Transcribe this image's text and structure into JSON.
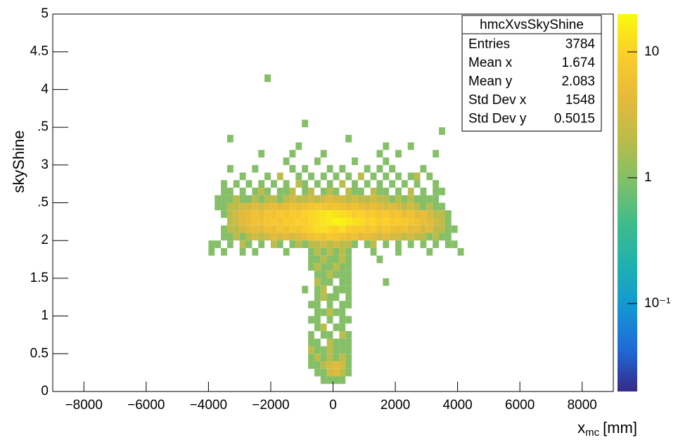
{
  "chart_data": {
    "type": "heatmap2d",
    "y_label": "skyShine",
    "x_label": {
      "text": "x",
      "sub": "mc",
      "unit": "[mm]"
    },
    "xlim": [
      -9000,
      9000
    ],
    "ylim": [
      0,
      5
    ],
    "zlim": [
      0.02,
      20
    ],
    "z_log": true,
    "xbin_width": 200,
    "ybin_width": 0.1,
    "xticks": [
      {
        "value": -8000,
        "label": "−8000"
      },
      {
        "value": -6000,
        "label": "−6000"
      },
      {
        "value": -4000,
        "label": "−4000"
      },
      {
        "value": -2000,
        "label": "−2000"
      },
      0,
      2000,
      4000,
      6000,
      8000
    ],
    "yticks": [
      0,
      0.5,
      1,
      1.5,
      2,
      {
        "value": 2.5,
        "label": ".5"
      },
      3,
      {
        "value": 3.5,
        "label": ".5"
      },
      4,
      4.5,
      5
    ],
    "zticks": [
      {
        "value": 0.1,
        "label": "10⁻¹"
      },
      1,
      10
    ],
    "palette": [
      "#352a87",
      "#1f6ad8",
      "#1496d4",
      "#1fb0b0",
      "#3fbc8a",
      "#7fbf6a",
      "#bbbc4a",
      "#e6ba3a",
      "#fbcc2c",
      "#f9fb0e"
    ],
    "stats": {
      "title": "hmcXvsSkyShine",
      "rows": [
        {
          "label": "Entries",
          "value": 3784
        },
        {
          "label": "Mean x",
          "value": 1.674
        },
        {
          "label": "Mean y",
          "value": 2.083
        },
        {
          "label": "Std Dev x",
          "value": 1548
        },
        {
          "label": "Std Dev y",
          "value": 0.5015
        }
      ]
    },
    "rows": [
      {
        "y": 4.15,
        "x": [
          -2100
        ],
        "z": [
          1
        ]
      },
      {
        "y": 3.55,
        "x": [
          -900
        ],
        "z": [
          1
        ]
      },
      {
        "y": 3.45,
        "x": [
          3500
        ],
        "z": [
          1
        ]
      },
      {
        "y": 3.35,
        "x": [
          -3300,
          500
        ],
        "z": [
          1,
          1
        ]
      },
      {
        "y": 3.25,
        "x": [
          -1100,
          1700,
          2500
        ],
        "z": [
          1,
          1,
          1
        ]
      },
      {
        "y": 3.15,
        "x": [
          -2300,
          -1300,
          -300,
          1500,
          2100,
          3300
        ],
        "z": [
          1,
          1,
          1,
          1,
          1,
          1
        ]
      },
      {
        "y": 3.05,
        "x": [
          -1500,
          -500,
          700,
          1700
        ],
        "z": [
          1,
          1,
          1,
          1
        ]
      },
      {
        "y": 2.95,
        "x": [
          -3300,
          -2500,
          -1300,
          -900,
          -100,
          300,
          1100,
          1500,
          1900,
          2900
        ],
        "z": [
          1,
          1,
          1,
          1,
          1,
          1,
          1,
          1,
          1,
          1
        ]
      },
      {
        "y": 2.85,
        "x": [
          -2900,
          -2100,
          -1700,
          -1100,
          -700,
          -300,
          100,
          500,
          900,
          1300,
          1700,
          2100,
          2500,
          2700,
          3100
        ],
        "z": [
          1,
          1,
          2,
          1,
          1,
          1,
          1,
          1,
          2,
          1,
          1,
          1,
          1,
          2,
          1
        ]
      },
      {
        "y": 2.75,
        "x": [
          -3500,
          -3100,
          -2700,
          -2300,
          -1900,
          -1500,
          -1100,
          -900,
          -500,
          -100,
          300,
          700,
          1100,
          1500,
          1900,
          2300,
          2700,
          3300
        ],
        "z": [
          1,
          1,
          1,
          1,
          1,
          1,
          2,
          1,
          1,
          1,
          2,
          1,
          1,
          1,
          1,
          1,
          1,
          1
        ]
      },
      {
        "y": 2.65,
        "x": [
          -3500,
          -3300,
          -2900,
          -2500,
          -2300,
          -2100,
          -1700,
          -1500,
          -1300,
          -900,
          -700,
          -300,
          -100,
          100,
          500,
          700,
          900,
          1300,
          1500,
          1700,
          2100,
          2500,
          2900,
          3300,
          3500
        ],
        "z": [
          1,
          1,
          1,
          1,
          2,
          1,
          1,
          1,
          2,
          1,
          2,
          1,
          2,
          1,
          2,
          1,
          1,
          2,
          1,
          1,
          1,
          2,
          1,
          1,
          1
        ]
      },
      {
        "y": 2.55,
        "x": [
          -3700,
          -3500,
          -3300,
          -3100,
          -2900,
          -2700,
          -2500,
          -2300,
          -2100,
          -1900,
          -1700,
          -1500,
          -1300,
          -1100,
          -900,
          -700,
          -500,
          -300,
          -100,
          100,
          300,
          500,
          700,
          900,
          1100,
          1300,
          1500,
          1700,
          1900,
          2100,
          2300,
          2500,
          2700,
          2900,
          3100,
          3300
        ],
        "z": [
          1,
          1,
          1,
          2,
          1,
          1,
          2,
          1,
          2,
          2,
          1,
          2,
          3,
          2,
          2,
          3,
          2,
          3,
          4,
          3,
          3,
          2,
          3,
          2,
          2,
          3,
          2,
          2,
          1,
          2,
          1,
          2,
          1,
          1,
          1,
          1
        ]
      },
      {
        "y": 2.45,
        "x": [
          -3700,
          -3500,
          -3300,
          -3100,
          -2900,
          -2700,
          -2500,
          -2300,
          -2100,
          -1900,
          -1700,
          -1500,
          -1300,
          -1100,
          -900,
          -700,
          -500,
          -300,
          -100,
          100,
          300,
          500,
          700,
          900,
          1100,
          1300,
          1500,
          1700,
          1900,
          2100,
          2300,
          2500,
          2700,
          2900,
          3100,
          3300,
          3500
        ],
        "z": [
          1,
          1,
          2,
          2,
          3,
          3,
          4,
          3,
          4,
          5,
          4,
          5,
          6,
          5,
          6,
          7,
          8,
          7,
          6,
          7,
          6,
          5,
          6,
          5,
          4,
          5,
          4,
          3,
          4,
          3,
          2,
          3,
          2,
          1,
          2,
          1,
          1
        ]
      },
      {
        "y": 2.35,
        "x": [
          -3500,
          -3300,
          -3100,
          -2900,
          -2700,
          -2500,
          -2300,
          -2100,
          -1900,
          -1700,
          -1500,
          -1300,
          -1100,
          -900,
          -700,
          -500,
          -300,
          -100,
          100,
          300,
          500,
          700,
          900,
          1100,
          1300,
          1500,
          1700,
          1900,
          2100,
          2300,
          2500,
          2700,
          2900,
          3100,
          3300,
          3500,
          3700
        ],
        "z": [
          1,
          2,
          3,
          4,
          5,
          6,
          5,
          7,
          6,
          8,
          7,
          9,
          8,
          10,
          11,
          12,
          14,
          15,
          13,
          12,
          11,
          9,
          10,
          8,
          9,
          7,
          8,
          6,
          7,
          5,
          6,
          4,
          5,
          3,
          2,
          2,
          1
        ]
      },
      {
        "y": 2.25,
        "x": [
          -3300,
          -3100,
          -2900,
          -2700,
          -2500,
          -2300,
          -2100,
          -1900,
          -1700,
          -1500,
          -1300,
          -1100,
          -900,
          -700,
          -500,
          -300,
          -100,
          100,
          300,
          500,
          700,
          900,
          1100,
          1300,
          1500,
          1700,
          1900,
          2100,
          2300,
          2500,
          2700,
          2900,
          3100,
          3300,
          3500,
          3700
        ],
        "z": [
          2,
          3,
          4,
          5,
          6,
          6,
          7,
          8,
          7,
          9,
          8,
          10,
          9,
          11,
          12,
          14,
          16,
          18,
          17,
          15,
          13,
          12,
          10,
          11,
          9,
          10,
          8,
          9,
          8,
          7,
          6,
          5,
          4,
          3,
          2,
          1
        ]
      },
      {
        "y": 2.15,
        "x": [
          -3500,
          -3300,
          -3100,
          -2900,
          -2700,
          -2500,
          -2300,
          -2100,
          -1900,
          -1700,
          -1500,
          -1300,
          -1100,
          -900,
          -700,
          -500,
          -300,
          -100,
          100,
          300,
          500,
          700,
          900,
          1100,
          1300,
          1500,
          1700,
          1900,
          2100,
          2300,
          2500,
          2700,
          2900,
          3100,
          3300,
          3500,
          3700,
          3900
        ],
        "z": [
          1,
          2,
          2,
          3,
          4,
          5,
          4,
          6,
          5,
          7,
          6,
          8,
          7,
          9,
          10,
          12,
          13,
          11,
          10,
          12,
          9,
          8,
          9,
          7,
          8,
          6,
          7,
          6,
          5,
          6,
          4,
          5,
          3,
          4,
          2,
          2,
          1,
          1
        ]
      },
      {
        "y": 2.05,
        "x": [
          -3500,
          -3300,
          -3100,
          -2900,
          -2700,
          -2500,
          -2300,
          -2100,
          -1900,
          -1700,
          -1500,
          -1300,
          -1100,
          -900,
          -700,
          -500,
          -300,
          -100,
          100,
          300,
          500,
          700,
          900,
          1100,
          1300,
          1500,
          1700,
          1900,
          2100,
          2300,
          2500,
          2700,
          2900,
          3100,
          3300,
          3500,
          3700
        ],
        "z": [
          1,
          1,
          2,
          1,
          2,
          3,
          2,
          3,
          4,
          3,
          4,
          3,
          4,
          5,
          6,
          7,
          6,
          8,
          7,
          6,
          5,
          6,
          4,
          5,
          4,
          3,
          4,
          3,
          3,
          2,
          3,
          2,
          2,
          1,
          2,
          1,
          1
        ]
      },
      {
        "y": 1.95,
        "x": [
          -3900,
          -3700,
          -3300,
          -2900,
          -2700,
          -2300,
          -1900,
          -1700,
          -1300,
          -1100,
          -900,
          -700,
          -500,
          -300,
          -100,
          100,
          300,
          500,
          700,
          1100,
          1300,
          1700,
          2100,
          2500,
          2900,
          3300,
          3700,
          3900
        ],
        "z": [
          1,
          1,
          1,
          2,
          1,
          1,
          2,
          1,
          1,
          2,
          1,
          2,
          2,
          3,
          2,
          3,
          2,
          2,
          1,
          1,
          2,
          1,
          1,
          1,
          1,
          1,
          1,
          1
        ]
      },
      {
        "y": 1.85,
        "x": [
          -3900,
          -3500,
          -2900,
          -2500,
          -1500,
          -700,
          -500,
          -300,
          -100,
          100,
          300,
          500,
          1300,
          2100,
          3100,
          4100
        ],
        "z": [
          1,
          1,
          1,
          1,
          1,
          1,
          2,
          1,
          2,
          1,
          2,
          1,
          1,
          1,
          1,
          1
        ]
      },
      {
        "y": 1.75,
        "x": [
          -700,
          -500,
          -300,
          -100,
          100,
          300,
          500,
          1500
        ],
        "z": [
          1,
          1,
          2,
          1,
          1,
          2,
          1,
          1
        ]
      },
      {
        "y": 1.65,
        "x": [
          -700,
          -500,
          -300,
          -100,
          100,
          300,
          500
        ],
        "z": [
          1,
          2,
          1,
          1,
          2,
          1,
          1
        ]
      },
      {
        "y": 1.55,
        "x": [
          -500,
          -300,
          -100,
          100,
          300,
          500
        ],
        "z": [
          1,
          1,
          2,
          1,
          1,
          1
        ]
      },
      {
        "y": 1.45,
        "x": [
          -500,
          -300,
          -100,
          300,
          500,
          1700
        ],
        "z": [
          2,
          1,
          1,
          1,
          1,
          1
        ]
      },
      {
        "y": 1.35,
        "x": [
          -900,
          -500,
          -300,
          100,
          300,
          500
        ],
        "z": [
          1,
          1,
          2,
          1,
          1,
          1
        ]
      },
      {
        "y": 1.25,
        "x": [
          -500,
          -300,
          -100,
          100,
          500
        ],
        "z": [
          1,
          2,
          1,
          1,
          1
        ]
      },
      {
        "y": 1.15,
        "x": [
          -700,
          -500,
          -100,
          300,
          500
        ],
        "z": [
          1,
          1,
          1,
          1,
          1
        ]
      },
      {
        "y": 1.05,
        "x": [
          -500,
          -300,
          -100,
          100,
          300
        ],
        "z": [
          1,
          1,
          2,
          1,
          1
        ]
      },
      {
        "y": 0.95,
        "x": [
          -700,
          -500,
          -100,
          300,
          500
        ],
        "z": [
          1,
          1,
          1,
          1,
          1
        ]
      },
      {
        "y": 0.85,
        "x": [
          -500,
          -300,
          100,
          300
        ],
        "z": [
          1,
          2,
          1,
          1
        ]
      },
      {
        "y": 0.75,
        "x": [
          -700,
          -300,
          -100,
          300,
          500
        ],
        "z": [
          1,
          1,
          1,
          2,
          1
        ]
      },
      {
        "y": 0.65,
        "x": [
          -700,
          -500,
          -100,
          100,
          300,
          500
        ],
        "z": [
          1,
          1,
          2,
          1,
          1,
          1
        ]
      },
      {
        "y": 0.55,
        "x": [
          -700,
          -500,
          -300,
          -100,
          100,
          300,
          500
        ],
        "z": [
          2,
          1,
          1,
          2,
          1,
          1,
          1
        ]
      },
      {
        "y": 0.45,
        "x": [
          -700,
          -500,
          -300,
          -100,
          100,
          300,
          500
        ],
        "z": [
          1,
          2,
          1,
          2,
          1,
          2,
          1
        ]
      },
      {
        "y": 0.35,
        "x": [
          -700,
          -500,
          -300,
          -100,
          100,
          300,
          500
        ],
        "z": [
          1,
          1,
          2,
          3,
          4,
          3,
          1
        ]
      },
      {
        "y": 0.25,
        "x": [
          -500,
          -300,
          -100,
          100,
          300,
          500
        ],
        "z": [
          1,
          1,
          3,
          4,
          2,
          1
        ]
      },
      {
        "y": 0.15,
        "x": [
          -300,
          -100,
          100,
          300
        ],
        "z": [
          1,
          1,
          1,
          1
        ]
      }
    ]
  }
}
